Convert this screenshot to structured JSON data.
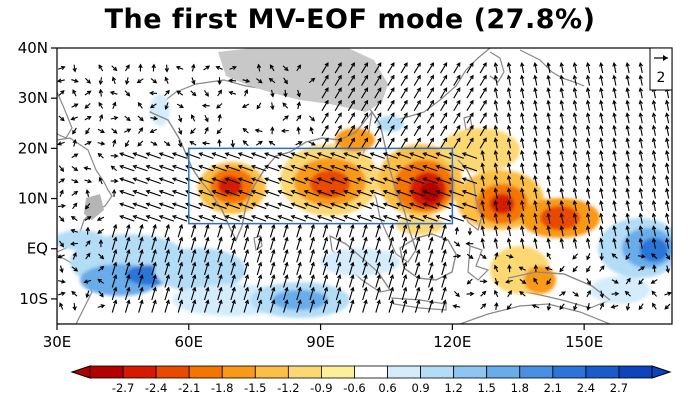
{
  "title": "The first MV-EOF mode (27.8%)",
  "map": {
    "lon_range": [
      30,
      170
    ],
    "lat_range": [
      -15,
      40
    ],
    "lat_ticks": [
      {
        "value": 40,
        "label": "40N"
      },
      {
        "value": 30,
        "label": "30N"
      },
      {
        "value": 20,
        "label": "20N"
      },
      {
        "value": 10,
        "label": "10N"
      },
      {
        "value": 0,
        "label": "EQ"
      },
      {
        "value": -10,
        "label": "10S"
      }
    ],
    "lon_ticks": [
      {
        "value": 30,
        "label": "30E"
      },
      {
        "value": 60,
        "label": "60E"
      },
      {
        "value": 90,
        "label": "90E"
      },
      {
        "value": 120,
        "label": "120E"
      },
      {
        "value": 150,
        "label": "150E"
      }
    ],
    "box_region": {
      "lon": [
        60,
        120
      ],
      "lat": [
        5,
        20
      ]
    },
    "box_color": "#2b6fd6",
    "land_color": "#9a9a9a",
    "reference_vector": "2"
  },
  "colorbar": {
    "ticks": [
      "-2.7",
      "-2.4",
      "-2.1",
      "-1.8",
      "-1.5",
      "-1.2",
      "-0.9",
      "-0.6",
      "0.6",
      "0.9",
      "1.2",
      "1.5",
      "1.8",
      "2.1",
      "2.4",
      "2.7"
    ],
    "colors": [
      "#b30000",
      "#d61a00",
      "#ea4a00",
      "#f47500",
      "#f89a18",
      "#fbbf45",
      "#fcd873",
      "#fdee9a",
      "#ffffff",
      "#d4ecfb",
      "#b3dcf6",
      "#8ec6f1",
      "#68acea",
      "#4790e2",
      "#2c74d8",
      "#1a5bcc",
      "#0b44bd"
    ]
  }
}
